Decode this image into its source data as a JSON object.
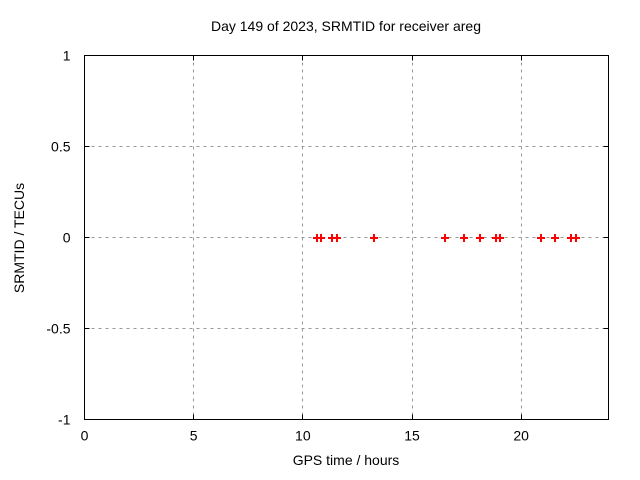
{
  "chart_data": {
    "type": "scatter",
    "title": "Day 149 of 2023, SRMTID for receiver areg",
    "xlabel": "GPS time / hours",
    "ylabel": "SRMTID / TECUs",
    "xlim": [
      0,
      24
    ],
    "ylim": [
      -1,
      1
    ],
    "xticks": [
      0,
      5,
      10,
      15,
      20
    ],
    "xtick_labels": [
      "0",
      "5",
      "10",
      "15",
      "20"
    ],
    "yticks": [
      -1,
      -0.5,
      0,
      0.5,
      1
    ],
    "ytick_labels": [
      "-1",
      "-0.5",
      "0",
      "0.5",
      "1"
    ],
    "grid": true,
    "legend": false,
    "series": [
      {
        "marker": "plus",
        "color": "#ff0000",
        "x": [
          10.65,
          10.85,
          11.35,
          11.55,
          13.25,
          16.5,
          17.4,
          18.1,
          18.85,
          19.05,
          20.9,
          21.55,
          22.3,
          22.5
        ],
        "y": [
          0,
          0,
          0,
          0,
          0,
          0,
          0,
          0,
          0,
          0,
          0,
          0,
          0,
          0
        ]
      }
    ],
    "colors": {
      "marker": "#ff0000",
      "grid": "#999999",
      "border": "#000000",
      "background": "#ffffff"
    }
  }
}
